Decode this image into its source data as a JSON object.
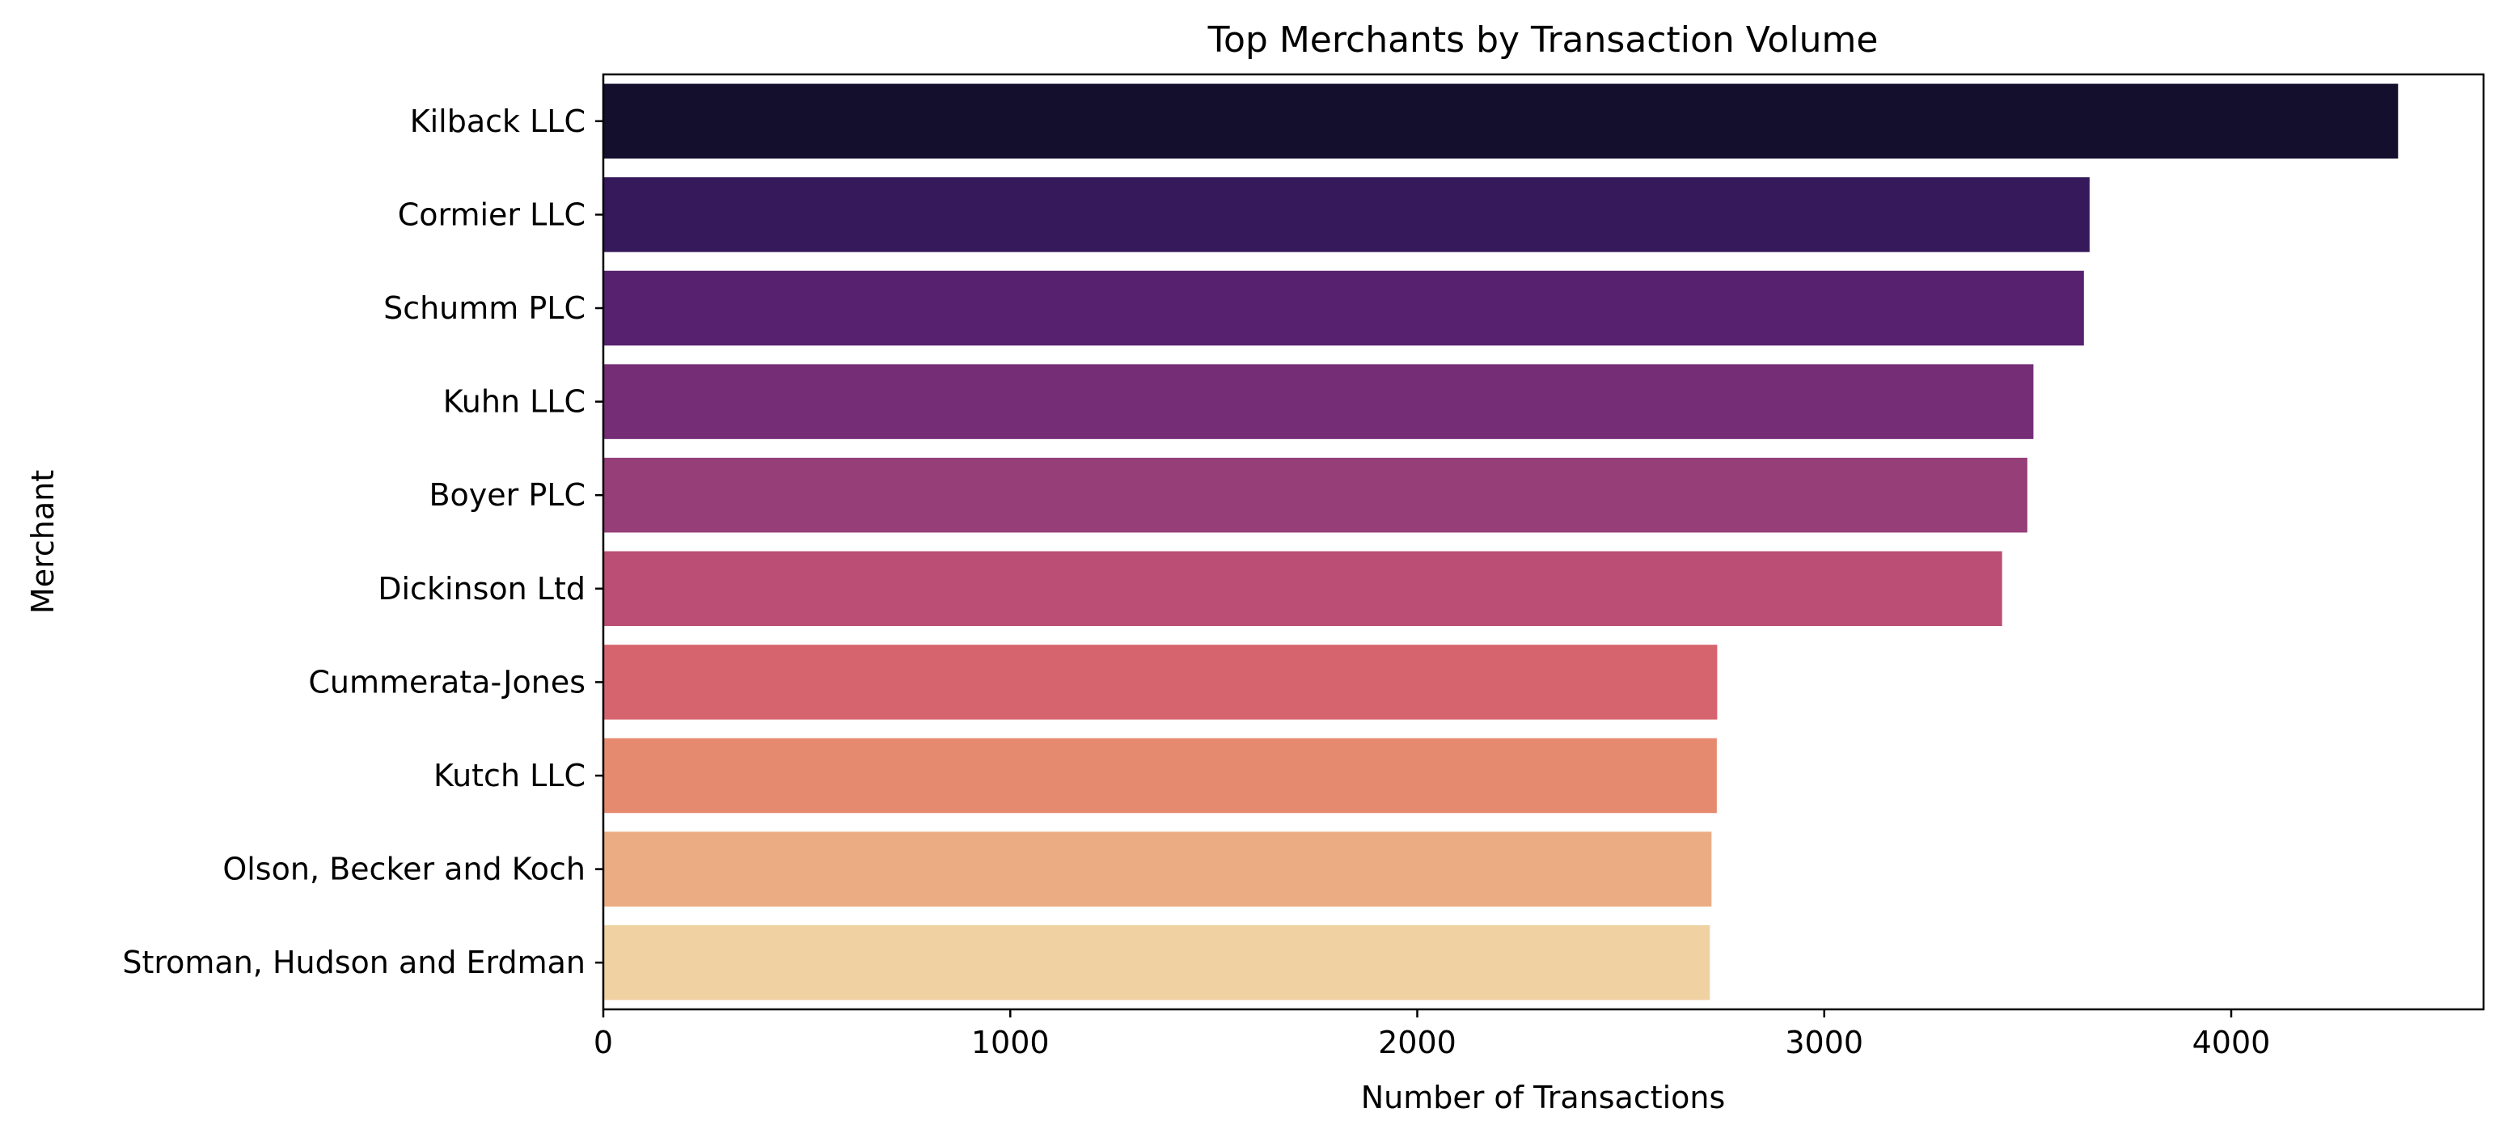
{
  "chart_data": {
    "type": "bar",
    "orientation": "horizontal",
    "title": "Top Merchants by Transaction Volume",
    "xlabel": "Number of Transactions",
    "ylabel": "Merchant",
    "categories": [
      "Kilback LLC",
      "Cormier LLC",
      "Schumm PLC",
      "Kuhn LLC",
      "Boyer PLC",
      "Dickinson Ltd",
      "Cummerata-Jones",
      "Kutch LLC",
      "Olson, Becker and Koch",
      "Stroman, Hudson and Erdman"
    ],
    "values": [
      4410,
      3652,
      3638,
      3514,
      3499,
      3437,
      2737,
      2736,
      2723,
      2719
    ],
    "colors": [
      "#150f2e",
      "#35195b",
      "#57216f",
      "#752d76",
      "#953e78",
      "#ba4e74",
      "#d6646e",
      "#e68a6f",
      "#ebac83",
      "#f0d1a1"
    ],
    "xlim": [
      0,
      4620
    ],
    "xticks": [
      0,
      1000,
      2000,
      3000,
      4000
    ],
    "grid": false,
    "legend": "none"
  }
}
